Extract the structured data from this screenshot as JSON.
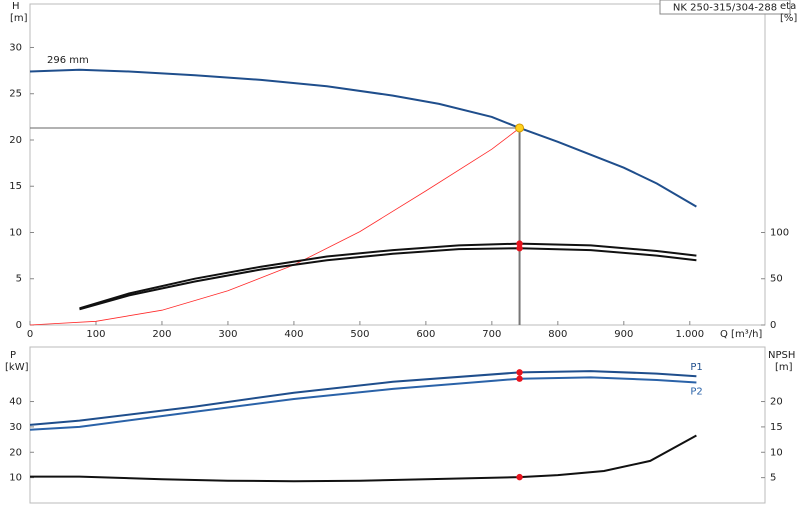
{
  "chart_data": [
    {
      "type": "line",
      "box_label": "NK 250-315/304-288",
      "annotation": "296 mm",
      "ylabel": "H",
      "yunit": "[m]",
      "y2label": "eta",
      "y2unit": "[%]",
      "xlabel": "Q [m³/h]",
      "xlim": [
        0,
        1114
      ],
      "ylim": [
        0,
        34.7
      ],
      "y2lim": [
        0,
        347
      ],
      "xticks": [
        0,
        100,
        200,
        300,
        400,
        500,
        600,
        700,
        800,
        900,
        {
          "value": 1000,
          "label": "1.000"
        }
      ],
      "yticks": [
        0,
        5,
        10,
        15,
        20,
        25,
        30
      ],
      "y2ticks": [
        0,
        50,
        100
      ],
      "operating_point": {
        "x": 742,
        "y": 21.3
      },
      "series": [
        {
          "color": "#1f4e8c",
          "x": [
            0,
            75,
            150,
            250,
            350,
            450,
            550,
            620,
            700,
            742,
            800,
            900,
            950,
            1010
          ],
          "values": [
            27.4,
            27.6,
            27.4,
            27.0,
            26.5,
            25.8,
            24.8,
            23.9,
            22.5,
            21.3,
            19.8,
            17.0,
            15.3,
            12.8
          ]
        },
        {
          "color": "#ff2a2a",
          "x": [
            0,
            100,
            200,
            300,
            400,
            500,
            600,
            700,
            742
          ],
          "values": [
            0,
            0.4,
            1.6,
            3.7,
            6.5,
            10.1,
            14.5,
            19.0,
            21.3
          ]
        },
        {
          "color": "#111111",
          "axis": "y2",
          "x": [
            75,
            150,
            250,
            350,
            450,
            550,
            650,
            742,
            850,
            950,
            1010
          ],
          "values": [
            18,
            34,
            50,
            63,
            74,
            81,
            86,
            88,
            86,
            80,
            75
          ]
        },
        {
          "color": "#111111",
          "axis": "y2",
          "x": [
            75,
            150,
            250,
            350,
            450,
            550,
            650,
            742,
            850,
            950,
            1010
          ],
          "values": [
            17,
            32,
            47,
            60,
            70,
            77,
            82,
            83,
            81,
            75,
            70
          ]
        }
      ]
    },
    {
      "type": "line",
      "ylabel": "P",
      "yunit": "[kW]",
      "y2label": "NPSH",
      "y2unit": "[m]",
      "xlim": [
        0,
        1114
      ],
      "ylim": [
        0,
        61.5
      ],
      "y2lim": [
        0,
        30.75
      ],
      "yticks": [
        10,
        20,
        30,
        40
      ],
      "y2ticks": [
        5,
        10,
        15,
        20
      ],
      "series": [
        {
          "name": "P1",
          "color": "#1f4e8c",
          "x": [
            0,
            75,
            250,
            400,
            550,
            742,
            850,
            950,
            1010
          ],
          "values": [
            30.8,
            32.5,
            38.0,
            43.5,
            47.8,
            51.5,
            52.0,
            51.0,
            50.0
          ]
        },
        {
          "name": "P2",
          "color": "#2a62a8",
          "x": [
            0,
            75,
            250,
            400,
            550,
            742,
            850,
            950,
            1010
          ],
          "values": [
            28.9,
            30.0,
            36.0,
            41.0,
            45.0,
            49.0,
            49.5,
            48.5,
            47.5
          ]
        },
        {
          "color": "#111111",
          "axis": "y2",
          "x": [
            0,
            75,
            200,
            300,
            400,
            500,
            600,
            742,
            800,
            870,
            940,
            1010
          ],
          "values": [
            5.2,
            5.2,
            4.7,
            4.4,
            4.3,
            4.4,
            4.7,
            5.1,
            5.5,
            6.3,
            8.3,
            13.3
          ]
        }
      ]
    }
  ]
}
